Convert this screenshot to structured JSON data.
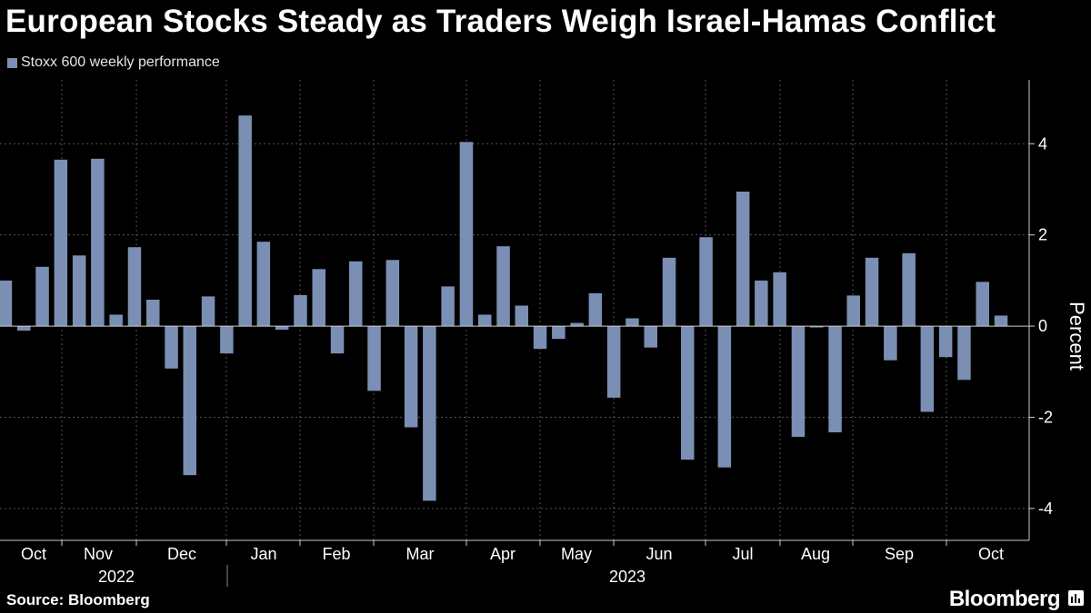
{
  "title": "European Stocks Steady as Traders Weigh Israel-Hamas Conflict",
  "legend_label": "Stoxx 600 weekly performance",
  "source": "Source: Bloomberg",
  "brand": "Bloomberg",
  "colors": {
    "bar": "#7b8fb5",
    "background": "#000000",
    "grid": "#555555",
    "text": "#ffffff"
  },
  "chart_data": {
    "type": "bar",
    "title": "European Stocks Steady as Traders Weigh Israel-Hamas Conflict",
    "ylabel": "Percent",
    "xlabel": "",
    "ylim": [
      -4.7,
      5.4
    ],
    "yticks": [
      -4,
      -2,
      0,
      2,
      4
    ],
    "ytick_labels": [
      "-4",
      "-2",
      "0",
      "2",
      "4"
    ],
    "months": [
      "Oct",
      "Nov",
      "Dec",
      "Jan",
      "Feb",
      "Mar",
      "Apr",
      "May",
      "Jun",
      "Jul",
      "Aug",
      "Sep",
      "Oct"
    ],
    "years": [
      "2022",
      "2023"
    ],
    "series": [
      {
        "name": "Stoxx 600 weekly performance",
        "values": [
          1.0,
          -0.1,
          1.3,
          3.65,
          1.55,
          3.67,
          0.25,
          1.73,
          0.58,
          -0.93,
          -3.27,
          0.65,
          -0.6,
          4.62,
          1.85,
          -0.08,
          0.68,
          1.25,
          -0.6,
          1.42,
          -1.42,
          1.45,
          -2.22,
          -3.83,
          0.87,
          4.04,
          0.25,
          1.75,
          0.45,
          -0.5,
          -0.28,
          0.07,
          0.72,
          -1.57,
          0.17,
          -0.47,
          1.5,
          -2.93,
          1.95,
          -3.1,
          2.95,
          1.0,
          1.18,
          -2.43,
          -0.03,
          -2.33,
          0.67,
          1.5,
          -0.75,
          1.6,
          -1.88,
          -0.68,
          -1.18,
          0.97,
          0.23
        ]
      }
    ]
  }
}
